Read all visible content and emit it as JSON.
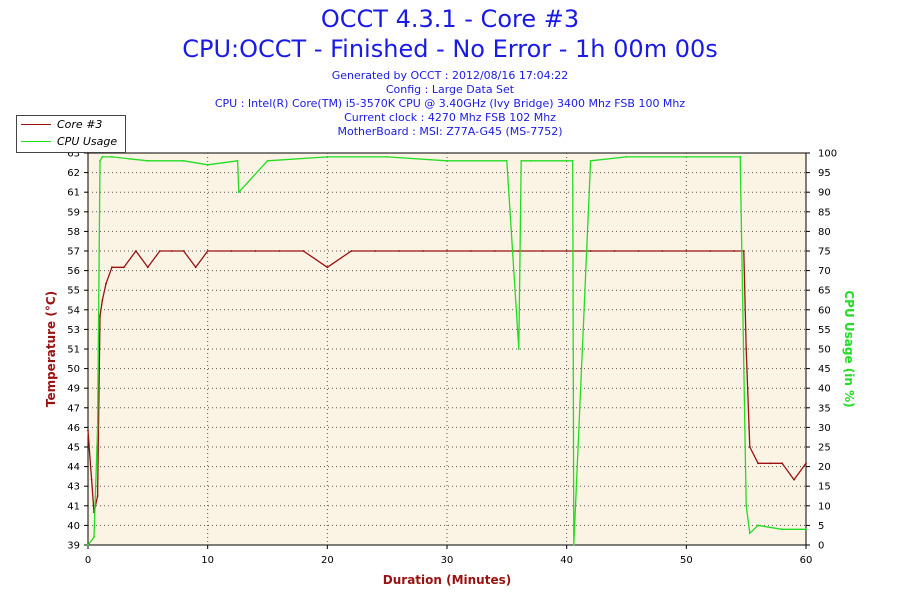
{
  "header": {
    "title_line1": "OCCT 4.3.1 - Core #3",
    "title_line2": "CPU:OCCT - Finished - No Error - 1h 00m 00s",
    "info": [
      "Generated by OCCT : 2012/08/16 17:04:22",
      "Config : Large Data Set",
      "CPU : Intel(R) Core(TM) i5-3570K CPU @ 3.40GHz (Ivy Bridge) 3400 Mhz FSB 100 Mhz",
      "Current clock : 4270 Mhz FSB 102 Mhz",
      "MotherBoard : MSI: Z77A-G45 (MS-7752)"
    ]
  },
  "colors": {
    "temperature": "#991111",
    "cpu_usage": "#22dd22",
    "title": "#1a1ae6",
    "plot_bg": "#fbf3e4"
  },
  "chart_data": {
    "type": "line",
    "xlabel": "Duration (Minutes)",
    "ylabel_left": "Temperature (°C)",
    "ylabel_right": "CPU Usage (in %)",
    "xlim": [
      0,
      60
    ],
    "ylim_left": [
      39,
      63
    ],
    "ylim_right": [
      0,
      100
    ],
    "grid": true,
    "legend_position": "top-left",
    "x_ticks": [
      0,
      10,
      20,
      30,
      40,
      50,
      60
    ],
    "y_left_ticks": [
      39,
      40,
      41,
      43,
      44,
      45,
      46,
      47,
      49,
      50,
      51,
      53,
      54,
      55,
      56,
      57,
      58,
      59,
      61,
      62,
      63
    ],
    "y_right_ticks": [
      0,
      5,
      10,
      15,
      20,
      25,
      30,
      35,
      40,
      45,
      50,
      55,
      60,
      65,
      70,
      75,
      80,
      85,
      90,
      95,
      100
    ],
    "series": [
      {
        "name": "Core #3",
        "axis": "left",
        "x": [
          0,
          0.3,
          0.5,
          0.8,
          1.0,
          1.2,
          1.5,
          2.0,
          3,
          4,
          5,
          6,
          7,
          8,
          9,
          10,
          12,
          14,
          16,
          18,
          20,
          22,
          24,
          26,
          28,
          30,
          32,
          34,
          36,
          38,
          40,
          42,
          44,
          46,
          48,
          50,
          52,
          54,
          54.8,
          55.0,
          55.3,
          56,
          57,
          58,
          59,
          60
        ],
        "y": [
          46,
          43,
          41,
          42,
          53,
          54,
          55,
          56,
          56,
          57,
          56,
          57,
          57,
          57,
          56,
          57,
          57,
          57,
          57,
          57,
          56,
          57,
          57,
          57,
          57,
          57,
          57,
          57,
          57,
          57,
          57,
          57,
          57,
          57,
          57,
          57,
          57,
          57,
          57,
          51,
          45,
          44,
          44,
          44,
          43,
          44
        ]
      },
      {
        "name": "CPU Usage",
        "axis": "right",
        "x": [
          0,
          0.5,
          0.8,
          1.0,
          1.2,
          2,
          5,
          8,
          10,
          12.5,
          12.6,
          15,
          20,
          25,
          30,
          35,
          36.0,
          36.2,
          37,
          40.5,
          40.6,
          42,
          45,
          50,
          54.5,
          55.0,
          55.3,
          56,
          58,
          60
        ],
        "y": [
          0,
          2,
          30,
          98,
          99,
          99,
          98,
          98,
          97,
          98,
          90,
          98,
          99,
          99,
          98,
          98,
          50,
          98,
          98,
          98,
          0,
          98,
          99,
          99,
          99,
          10,
          3,
          5,
          4,
          4
        ]
      }
    ]
  }
}
